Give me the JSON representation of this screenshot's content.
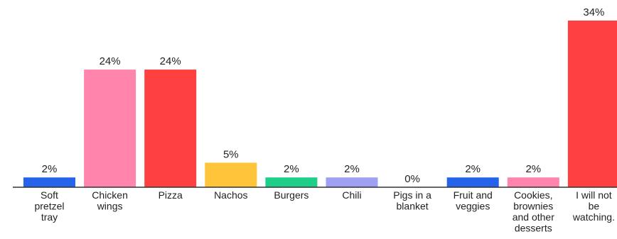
{
  "chart_data": {
    "type": "bar",
    "title": "",
    "xlabel": "",
    "ylabel": "",
    "ylim": [
      0,
      34
    ],
    "grid": false,
    "legend": "none",
    "categories": [
      [
        "Soft",
        "pretzel",
        "tray"
      ],
      [
        "Chicken",
        "wings"
      ],
      [
        "Pizza"
      ],
      [
        "Nachos"
      ],
      [
        "Burgers"
      ],
      [
        "Chili"
      ],
      [
        "Pigs in a",
        "blanket"
      ],
      [
        "Fruit and",
        "veggies"
      ],
      [
        "Cookies,",
        "brownies",
        "and other",
        "desserts"
      ],
      [
        "I will not",
        "be",
        "watching."
      ]
    ],
    "values": [
      2,
      24,
      24,
      5,
      2,
      2,
      0,
      2,
      2,
      34
    ],
    "value_labels": [
      "2%",
      "24%",
      "24%",
      "5%",
      "2%",
      "2%",
      "0%",
      "2%",
      "2%",
      "34%"
    ],
    "colors": [
      "#2563eb",
      "#ff85ad",
      "#ff4040",
      "#ffc53a",
      "#1ecf8a",
      "#a0a0f2",
      "#ffffff",
      "#2563eb",
      "#ff85ad",
      "#ff4040"
    ]
  }
}
